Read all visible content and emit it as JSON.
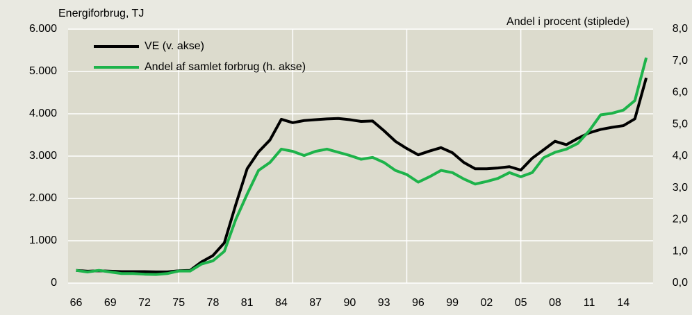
{
  "chart_data": {
    "type": "line",
    "ylabel": "Energiforbrug, TJ",
    "y2label": "Andel i procent (stiplede)",
    "x": [
      1966,
      1967,
      1968,
      1969,
      1970,
      1971,
      1972,
      1973,
      1974,
      1975,
      1976,
      1977,
      1978,
      1979,
      1980,
      1981,
      1982,
      1983,
      1984,
      1985,
      1986,
      1987,
      1988,
      1989,
      1990,
      1991,
      1992,
      1993,
      1994,
      1995,
      1996,
      1997,
      1998,
      1999,
      2000,
      2001,
      2002,
      2003,
      2004,
      2005,
      2006,
      2007,
      2008,
      2009,
      2010,
      2011,
      2012,
      2013,
      2014,
      2015,
      2016
    ],
    "series": [
      {
        "name": "VE (v. akse)",
        "color": "#000000",
        "axis": "y",
        "values": [
          300,
          280,
          290,
          280,
          270,
          270,
          270,
          265,
          265,
          290,
          300,
          500,
          650,
          950,
          1850,
          2700,
          3100,
          3380,
          3870,
          3790,
          3840,
          3860,
          3880,
          3890,
          3860,
          3820,
          3830,
          3600,
          3350,
          3180,
          3030,
          3120,
          3200,
          3080,
          2850,
          2700,
          2700,
          2720,
          2750,
          2670,
          2950,
          3150,
          3350,
          3270,
          3420,
          3550,
          3630,
          3680,
          3720,
          3880,
          4850
        ]
      },
      {
        "name": "Andel af samlet forbrug (h. akse)",
        "color": "#1db34a",
        "axis": "y2",
        "values": [
          0.4,
          0.35,
          0.4,
          0.35,
          0.3,
          0.3,
          0.28,
          0.27,
          0.3,
          0.38,
          0.38,
          0.6,
          0.7,
          1.0,
          2.0,
          2.8,
          3.55,
          3.8,
          4.22,
          4.15,
          4.02,
          4.15,
          4.22,
          4.12,
          4.02,
          3.9,
          3.96,
          3.8,
          3.55,
          3.42,
          3.18,
          3.35,
          3.55,
          3.48,
          3.28,
          3.12,
          3.2,
          3.3,
          3.48,
          3.35,
          3.48,
          3.95,
          4.12,
          4.22,
          4.4,
          4.8,
          5.3,
          5.35,
          5.45,
          5.75,
          7.1
        ]
      }
    ],
    "xlim": [
      1965.3,
      2016.6
    ],
    "xticks": [
      {
        "value": 1966,
        "label": "66"
      },
      {
        "value": 1969,
        "label": "69"
      },
      {
        "value": 1972,
        "label": "72"
      },
      {
        "value": 1975,
        "label": "75"
      },
      {
        "value": 1978,
        "label": "78"
      },
      {
        "value": 1981,
        "label": "81"
      },
      {
        "value": 1984,
        "label": "84"
      },
      {
        "value": 1987,
        "label": "87"
      },
      {
        "value": 1990,
        "label": "90"
      },
      {
        "value": 1993,
        "label": "93"
      },
      {
        "value": 1996,
        "label": "96"
      },
      {
        "value": 1999,
        "label": "99"
      },
      {
        "value": 2002,
        "label": "02"
      },
      {
        "value": 2005,
        "label": "05"
      },
      {
        "value": 2008,
        "label": "08"
      },
      {
        "value": 2011,
        "label": "11"
      },
      {
        "value": 2014,
        "label": "14"
      }
    ],
    "xgrid": [
      1975,
      1985,
      1995,
      2005
    ],
    "ylim": [
      0,
      6000
    ],
    "yticks": [
      0,
      {
        "value": 1000,
        "label": "1.000"
      },
      {
        "value": 2000,
        "label": "2.000"
      },
      {
        "value": 3000,
        "label": "3.000"
      },
      {
        "value": 4000,
        "label": "4.000"
      },
      {
        "value": 5000,
        "label": "5.000"
      },
      {
        "value": 6000,
        "label": "6.000"
      }
    ],
    "y2lim": [
      0,
      8
    ],
    "y2ticks": [
      {
        "value": 0,
        "label": "0,0"
      },
      {
        "value": 1,
        "label": "1,0"
      },
      {
        "value": 2,
        "label": "2,0"
      },
      {
        "value": 3,
        "label": "3,0"
      },
      {
        "value": 4,
        "label": "4,0"
      },
      {
        "value": 5,
        "label": "5,0"
      },
      {
        "value": 6,
        "label": "6,0"
      },
      {
        "value": 7,
        "label": "7,0"
      },
      {
        "value": 8,
        "label": "8,0"
      }
    ],
    "grid": true,
    "legend": "top-left"
  }
}
